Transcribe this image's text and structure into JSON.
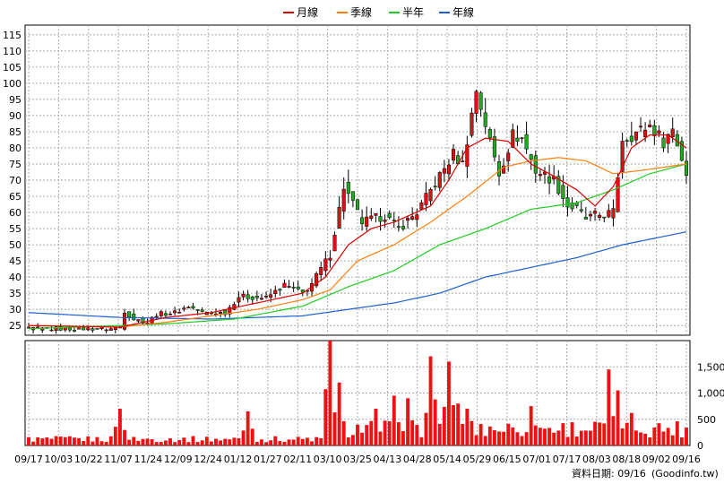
{
  "chart_data": {
    "type": "candlestick",
    "legend": [
      {
        "name": "月線",
        "color": "#dd0000"
      },
      {
        "name": "季線",
        "color": "#ff7f0e"
      },
      {
        "name": "半年",
        "color": "#22cc22"
      },
      {
        "name": "年線",
        "color": "#1f5fd0"
      }
    ],
    "price_axis": {
      "ylim": [
        22,
        118
      ],
      "ticks": [
        25,
        30,
        35,
        40,
        45,
        50,
        55,
        60,
        65,
        70,
        75,
        80,
        85,
        90,
        95,
        100,
        105,
        110,
        115
      ]
    },
    "volume_axis": {
      "ylim": [
        0,
        2000
      ],
      "ticks": [
        "0",
        "500",
        "1,000",
        "1,500"
      ]
    },
    "x_tick_labels": [
      "09/17",
      "10/03",
      "10/22",
      "11/07",
      "11/24",
      "12/09",
      "12/24",
      "01/12",
      "01/27",
      "02/11",
      "03/10",
      "03/25",
      "04/13",
      "04/28",
      "05/14",
      "05/29",
      "06/15",
      "07/01",
      "07/17",
      "08/03",
      "08/18",
      "09/02",
      "09/16"
    ],
    "close_anchors": [
      [
        0,
        24
      ],
      [
        18,
        24
      ],
      [
        20,
        24.5
      ],
      [
        21,
        29.5
      ],
      [
        23,
        27
      ],
      [
        26,
        26
      ],
      [
        28,
        28.5
      ],
      [
        32,
        29
      ],
      [
        35,
        31
      ],
      [
        38,
        29
      ],
      [
        43,
        29
      ],
      [
        46,
        34
      ],
      [
        52,
        33.5
      ],
      [
        56,
        37.5
      ],
      [
        60,
        35
      ],
      [
        62,
        38
      ],
      [
        66,
        47
      ],
      [
        69,
        68
      ],
      [
        73,
        57
      ],
      [
        78,
        59
      ],
      [
        81,
        55
      ],
      [
        85,
        60
      ],
      [
        89,
        69
      ],
      [
        93,
        78
      ],
      [
        95,
        75
      ],
      [
        98,
        98
      ],
      [
        101,
        82
      ],
      [
        103,
        72
      ],
      [
        106,
        84
      ],
      [
        108,
        83
      ],
      [
        111,
        73
      ],
      [
        115,
        70
      ],
      [
        118,
        62
      ],
      [
        120,
        61
      ],
      [
        122,
        58
      ],
      [
        124,
        59
      ],
      [
        128,
        60
      ],
      [
        130,
        83
      ],
      [
        132,
        84
      ],
      [
        136,
        87
      ],
      [
        139,
        82
      ],
      [
        141,
        86
      ],
      [
        144,
        72
      ]
    ],
    "ma_monthly": [
      [
        0,
        25
      ],
      [
        20,
        24.5
      ],
      [
        30,
        27.5
      ],
      [
        40,
        29
      ],
      [
        50,
        32
      ],
      [
        60,
        35
      ],
      [
        65,
        40
      ],
      [
        70,
        50
      ],
      [
        75,
        55
      ],
      [
        80,
        57
      ],
      [
        88,
        62
      ],
      [
        92,
        70
      ],
      [
        96,
        80
      ],
      [
        100,
        83
      ],
      [
        105,
        82
      ],
      [
        110,
        75
      ],
      [
        114,
        72
      ],
      [
        120,
        67
      ],
      [
        124,
        62
      ],
      [
        128,
        68
      ],
      [
        132,
        80
      ],
      [
        136,
        84
      ],
      [
        140,
        84
      ],
      [
        144,
        80
      ]
    ],
    "ma_quarterly": [
      [
        0,
        25
      ],
      [
        20,
        24.5
      ],
      [
        30,
        26
      ],
      [
        40,
        28
      ],
      [
        50,
        30
      ],
      [
        60,
        33
      ],
      [
        66,
        36
      ],
      [
        72,
        45
      ],
      [
        80,
        50
      ],
      [
        88,
        57
      ],
      [
        96,
        65
      ],
      [
        104,
        74
      ],
      [
        110,
        76
      ],
      [
        116,
        77
      ],
      [
        122,
        76
      ],
      [
        128,
        72
      ],
      [
        134,
        73
      ],
      [
        144,
        75
      ]
    ],
    "ma_half": [
      [
        0,
        24
      ],
      [
        30,
        25.5
      ],
      [
        45,
        27
      ],
      [
        60,
        31
      ],
      [
        70,
        37
      ],
      [
        80,
        42
      ],
      [
        90,
        50
      ],
      [
        100,
        55
      ],
      [
        110,
        61
      ],
      [
        120,
        63
      ],
      [
        128,
        67
      ],
      [
        136,
        72
      ],
      [
        144,
        75
      ]
    ],
    "ma_year": [
      [
        0,
        29
      ],
      [
        20,
        27.5
      ],
      [
        40,
        27
      ],
      [
        60,
        28
      ],
      [
        70,
        30
      ],
      [
        80,
        32
      ],
      [
        90,
        35
      ],
      [
        100,
        40
      ],
      [
        110,
        43
      ],
      [
        120,
        46
      ],
      [
        130,
        50
      ],
      [
        144,
        54
      ]
    ],
    "volume_spikes": [
      [
        20,
        700
      ],
      [
        48,
        650
      ],
      [
        66,
        2000
      ],
      [
        68,
        1200
      ],
      [
        76,
        700
      ],
      [
        80,
        950
      ],
      [
        83,
        900
      ],
      [
        88,
        1700
      ],
      [
        92,
        1600
      ],
      [
        94,
        800
      ],
      [
        96,
        700
      ],
      [
        110,
        750
      ],
      [
        127,
        1450
      ],
      [
        129,
        1050
      ],
      [
        132,
        620
      ],
      [
        145,
        450
      ]
    ],
    "footer": "資料日期: 09/16",
    "source": "(Goodinfo.tw)"
  }
}
